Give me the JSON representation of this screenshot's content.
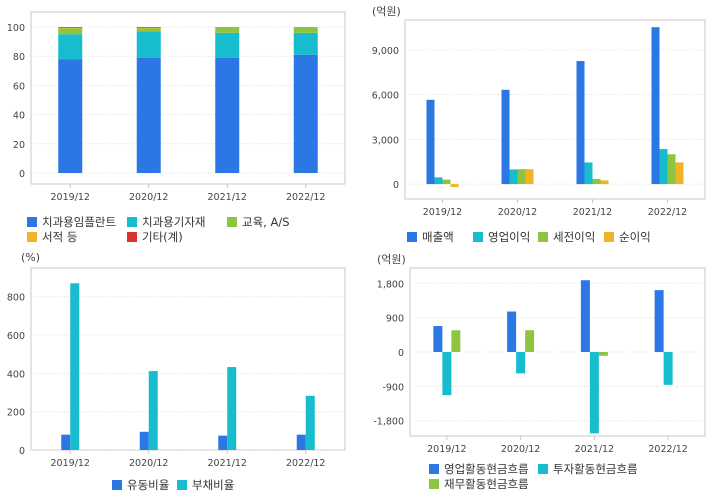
{
  "chart_data": [
    {
      "type": "bar",
      "stacked": true,
      "unit": "",
      "categories": [
        "2019/12",
        "2020/12",
        "2021/12",
        "2022/12"
      ],
      "ylim": [
        0,
        100
      ],
      "yticks": [
        "0",
        "20",
        "40",
        "60",
        "80",
        "100"
      ],
      "grid": true,
      "legend_position": "bottom",
      "series": [
        {
          "name": "치과용임플란트",
          "color": "#2b78e4",
          "values": [
            78,
            79,
            79,
            81
          ]
        },
        {
          "name": "치과용기자재",
          "color": "#17bccf",
          "values": [
            17,
            18,
            17,
            15
          ]
        },
        {
          "name": "교육, A/S",
          "color": "#8dc540",
          "values": [
            4,
            2,
            4,
            4
          ]
        },
        {
          "name": "서적 등",
          "color": "#f0b429",
          "values": [
            0.5,
            0.5,
            0,
            0
          ]
        },
        {
          "name": "기타(계)",
          "color": "#d9342b",
          "values": [
            0.5,
            0.5,
            0,
            0
          ]
        }
      ]
    },
    {
      "type": "bar",
      "unit": "(억원)",
      "categories": [
        "2019/12",
        "2020/12",
        "2021/12",
        "2022/12"
      ],
      "ylim": [
        -1000,
        11000
      ],
      "yticks": [
        "0",
        "3,000",
        "6,000",
        "9,000"
      ],
      "ytick_values": [
        0,
        3000,
        6000,
        9000
      ],
      "grid": true,
      "legend_position": "bottom",
      "series": [
        {
          "name": "매출액",
          "color": "#2b78e4",
          "values": [
            5650,
            6320,
            8250,
            10520
          ]
        },
        {
          "name": "영업이익",
          "color": "#17bccf",
          "values": [
            450,
            980,
            1450,
            2350
          ]
        },
        {
          "name": "세전이익",
          "color": "#8dc540",
          "values": [
            300,
            1000,
            350,
            2000
          ]
        },
        {
          "name": "순이익",
          "color": "#f0b429",
          "values": [
            -200,
            1000,
            250,
            1450
          ]
        }
      ]
    },
    {
      "type": "bar",
      "unit": "(%)",
      "categories": [
        "2019/12",
        "2020/12",
        "2021/12",
        "2022/12"
      ],
      "ylim": [
        0,
        950
      ],
      "yticks": [
        "0",
        "200",
        "400",
        "600",
        "800"
      ],
      "ytick_values": [
        0,
        200,
        400,
        600,
        800
      ],
      "grid": true,
      "legend_position": "bottom",
      "series": [
        {
          "name": "유동비율",
          "color": "#2b78e4",
          "values": [
            80,
            95,
            75,
            80
          ]
        },
        {
          "name": "부채비율",
          "color": "#17bccf",
          "values": [
            870,
            412,
            433,
            283
          ]
        }
      ]
    },
    {
      "type": "bar",
      "unit": "(억원)",
      "categories": [
        "2019/12",
        "2020/12",
        "2021/12",
        "2022/12"
      ],
      "ylim": [
        -2200,
        2200
      ],
      "yticks": [
        "1,800",
        "900",
        "0",
        "-900",
        "-1,800"
      ],
      "ytick_values": [
        1800,
        900,
        0,
        -900,
        -1800
      ],
      "grid": true,
      "legend_position": "bottom",
      "series": [
        {
          "name": "영업활동현금흐름",
          "color": "#2b78e4",
          "values": [
            680,
            1060,
            1880,
            1620
          ]
        },
        {
          "name": "투자활동현금흐름",
          "color": "#17bccf",
          "values": [
            -1130,
            -560,
            -2130,
            -860
          ]
        },
        {
          "name": "재무활동현금흐름",
          "color": "#8dc540",
          "values": [
            570,
            570,
            -100,
            0
          ]
        }
      ]
    }
  ]
}
